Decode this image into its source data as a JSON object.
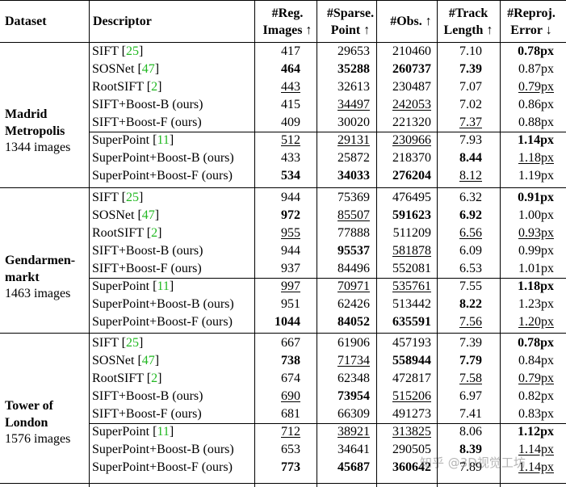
{
  "headers": {
    "dataset": "Dataset",
    "descriptor": "Descriptor",
    "reg_images": [
      "#Reg.",
      "Images ↑"
    ],
    "sparse_point": [
      "#Sparse.",
      "Point ↑"
    ],
    "obs": [
      "#Obs. ↑"
    ],
    "track_length": [
      "#Track",
      "Length ↑"
    ],
    "reproj_error": [
      "#Reproj.",
      "Error ↓"
    ]
  },
  "groups": [
    {
      "name": [
        "Madrid",
        "Metropolis"
      ],
      "count": "1344 images",
      "rows": [
        {
          "desc": "SIFT",
          "ref": "25",
          "reg": "417",
          "sparse": "29653",
          "obs": "210460",
          "track": "7.10",
          "err": "0.78px",
          "fmt": {
            "err": "b"
          }
        },
        {
          "desc": "SOSNet",
          "ref": "47",
          "reg": "464",
          "sparse": "35288",
          "obs": "260737",
          "track": "7.39",
          "err": "0.87px",
          "fmt": {
            "reg": "b",
            "sparse": "b",
            "obs": "b",
            "track": "b"
          }
        },
        {
          "desc": "RootSIFT",
          "ref": "2",
          "reg": "443",
          "sparse": "32613",
          "obs": "230487",
          "track": "7.07",
          "err": "0.79px",
          "fmt": {
            "reg": "u",
            "err": "u"
          }
        },
        {
          "desc": "SIFT+Boost-B (ours)",
          "ref": "",
          "reg": "415",
          "sparse": "34497",
          "obs": "242053",
          "track": "7.02",
          "err": "0.86px",
          "fmt": {
            "sparse": "u",
            "obs": "u"
          }
        },
        {
          "desc": "SIFT+Boost-F (ours)",
          "ref": "",
          "reg": "409",
          "sparse": "30020",
          "obs": "221320",
          "track": "7.37",
          "err": "0.88px",
          "fmt": {
            "track": "u"
          }
        },
        {
          "desc": "SuperPoint",
          "ref": "11",
          "reg": "512",
          "sparse": "29131",
          "obs": "230966",
          "track": "7.93",
          "err": "1.14px",
          "fmt": {
            "reg": "u",
            "sparse": "u",
            "obs": "u",
            "err": "b"
          },
          "sep": true
        },
        {
          "desc": "SuperPoint+Boost-B (ours)",
          "ref": "",
          "reg": "433",
          "sparse": "25872",
          "obs": "218370",
          "track": "8.44",
          "err": "1.18px",
          "fmt": {
            "track": "b",
            "err": "u"
          }
        },
        {
          "desc": "SuperPoint+Boost-F (ours)",
          "ref": "",
          "reg": "534",
          "sparse": "34033",
          "obs": "276204",
          "track": "8.12",
          "err": "1.19px",
          "fmt": {
            "reg": "b",
            "sparse": "b",
            "obs": "b",
            "track": "u"
          }
        }
      ]
    },
    {
      "name": [
        "Gendarmen-",
        "markt"
      ],
      "count": "1463 images",
      "rows": [
        {
          "desc": "SIFT",
          "ref": "25",
          "reg": "944",
          "sparse": "75369",
          "obs": "476495",
          "track": "6.32",
          "err": "0.91px",
          "fmt": {
            "err": "b"
          }
        },
        {
          "desc": "SOSNet",
          "ref": "47",
          "reg": "972",
          "sparse": "85507",
          "obs": "591623",
          "track": "6.92",
          "err": "1.00px",
          "fmt": {
            "reg": "b",
            "sparse": "u",
            "obs": "b",
            "track": "b"
          }
        },
        {
          "desc": "RootSIFT",
          "ref": "2",
          "reg": "955",
          "sparse": "77888",
          "obs": "511209",
          "track": "6.56",
          "err": "0.93px",
          "fmt": {
            "reg": "u",
            "track": "u",
            "err": "u"
          }
        },
        {
          "desc": "SIFT+Boost-B (ours)",
          "ref": "",
          "reg": "944",
          "sparse": "95537",
          "obs": "581878",
          "track": "6.09",
          "err": "0.99px",
          "fmt": {
            "sparse": "b",
            "obs": "u"
          }
        },
        {
          "desc": "SIFT+Boost-F (ours)",
          "ref": "",
          "reg": "937",
          "sparse": "84496",
          "obs": "552081",
          "track": "6.53",
          "err": "1.01px",
          "fmt": {}
        },
        {
          "desc": "SuperPoint",
          "ref": "11",
          "reg": "997",
          "sparse": "70971",
          "obs": "535761",
          "track": "7.55",
          "err": "1.18px",
          "fmt": {
            "reg": "u",
            "sparse": "u",
            "obs": "u",
            "err": "b"
          },
          "sep": true
        },
        {
          "desc": "SuperPoint+Boost-B (ours)",
          "ref": "",
          "reg": "951",
          "sparse": "62426",
          "obs": "513442",
          "track": "8.22",
          "err": "1.23px",
          "fmt": {
            "track": "b"
          }
        },
        {
          "desc": "SuperPoint+Boost-F (ours)",
          "ref": "",
          "reg": "1044",
          "sparse": "84052",
          "obs": "635591",
          "track": "7.56",
          "err": "1.20px",
          "fmt": {
            "reg": "b",
            "sparse": "b",
            "obs": "b",
            "track": "u",
            "err": "u"
          }
        }
      ]
    },
    {
      "name": [
        "Tower of",
        "London"
      ],
      "count": "1576 images",
      "rows": [
        {
          "desc": "SIFT",
          "ref": "25",
          "reg": "667",
          "sparse": "61906",
          "obs": "457193",
          "track": "7.39",
          "err": "0.78px",
          "fmt": {
            "err": "b"
          }
        },
        {
          "desc": "SOSNet",
          "ref": "47",
          "reg": "738",
          "sparse": "71734",
          "obs": "558944",
          "track": "7.79",
          "err": "0.84px",
          "fmt": {
            "reg": "b",
            "sparse": "u",
            "obs": "b",
            "track": "b"
          }
        },
        {
          "desc": "RootSIFT",
          "ref": "2",
          "reg": "674",
          "sparse": "62348",
          "obs": "472817",
          "track": "7.58",
          "err": "0.79px",
          "fmt": {
            "track": "u",
            "err": "u"
          }
        },
        {
          "desc": "SIFT+Boost-B (ours)",
          "ref": "",
          "reg": "690",
          "sparse": "73954",
          "obs": "515206",
          "track": "6.97",
          "err": "0.82px",
          "fmt": {
            "reg": "u",
            "sparse": "b",
            "obs": "u"
          }
        },
        {
          "desc": "SIFT+Boost-F (ours)",
          "ref": "",
          "reg": "681",
          "sparse": "66309",
          "obs": "491273",
          "track": "7.41",
          "err": "0.83px",
          "fmt": {}
        },
        {
          "desc": "SuperPoint",
          "ref": "11",
          "reg": "712",
          "sparse": "38921",
          "obs": "313825",
          "track": "8.06",
          "err": "1.12px",
          "fmt": {
            "reg": "u",
            "sparse": "u",
            "obs": "u",
            "err": "b"
          },
          "sep": true
        },
        {
          "desc": "SuperPoint+Boost-B (ours)",
          "ref": "",
          "reg": "653",
          "sparse": "34641",
          "obs": "290505",
          "track": "8.39",
          "err": "1.14px",
          "fmt": {
            "track": "b",
            "err": "u"
          }
        },
        {
          "desc": "SuperPoint+Boost-F (ours)",
          "ref": "",
          "reg": "773",
          "sparse": "45687",
          "obs": "360642",
          "track": "7.89",
          "err": "1.14px",
          "fmt": {
            "reg": "b",
            "sparse": "b",
            "obs": "b",
            "err": "u"
          }
        }
      ]
    }
  ],
  "watermark": "知乎 @3D视觉工坊"
}
